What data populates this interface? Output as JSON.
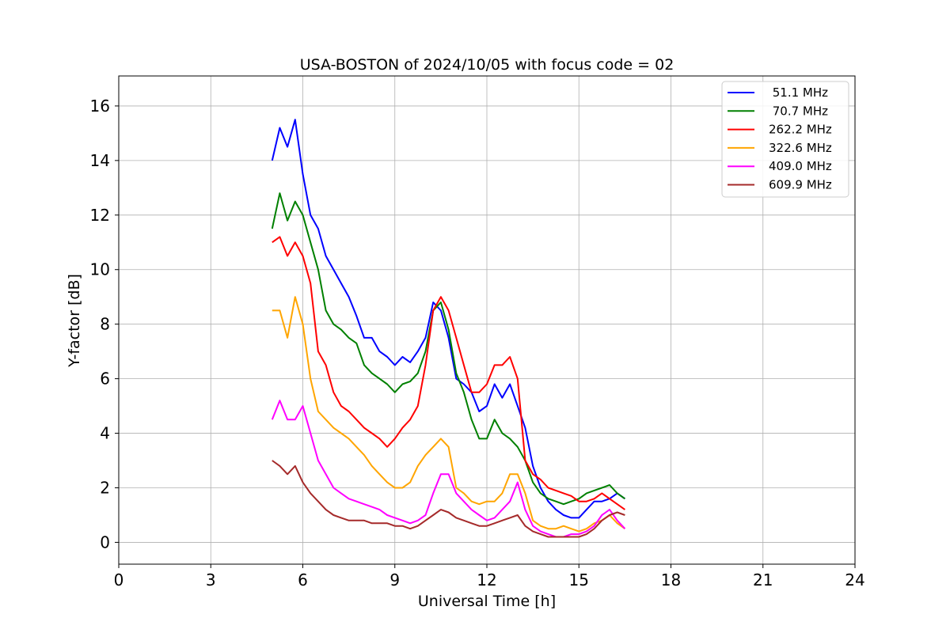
{
  "chart_data": {
    "type": "line",
    "title": "USA-BOSTON of 2024/10/05 with focus code = 02",
    "xlabel": "Universal Time [h]",
    "ylabel": "Y-factor [dB]",
    "xlim": [
      0,
      24
    ],
    "ylim": [
      -0.8,
      17.1
    ],
    "xticks": [
      0,
      3,
      6,
      9,
      12,
      15,
      18,
      21,
      24
    ],
    "yticks": [
      0,
      2,
      4,
      6,
      8,
      10,
      12,
      14,
      16
    ],
    "grid": true,
    "legend_position": "top-right",
    "x": [
      5.0,
      5.25,
      5.5,
      5.75,
      6.0,
      6.25,
      6.5,
      6.75,
      7.0,
      7.25,
      7.5,
      7.75,
      8.0,
      8.25,
      8.5,
      8.75,
      9.0,
      9.25,
      9.5,
      9.75,
      10.0,
      10.25,
      10.5,
      10.75,
      11.0,
      11.25,
      11.5,
      11.75,
      12.0,
      12.25,
      12.5,
      12.75,
      13.0,
      13.25,
      13.5,
      13.75,
      14.0,
      14.25,
      14.5,
      14.75,
      15.0,
      15.25,
      15.5,
      15.75,
      16.0,
      16.25,
      16.5
    ],
    "series": [
      {
        "name": " 51.1 MHz",
        "color": "#0000ff",
        "values": [
          14.0,
          15.2,
          14.5,
          15.5,
          13.5,
          12.0,
          11.5,
          10.5,
          10.0,
          9.5,
          9.0,
          8.3,
          7.5,
          7.5,
          7.0,
          6.8,
          6.5,
          6.8,
          6.6,
          7.0,
          7.5,
          8.8,
          8.5,
          7.5,
          6.0,
          5.8,
          5.5,
          4.8,
          5.0,
          5.8,
          5.3,
          5.8,
          5.0,
          4.2,
          2.8,
          2.0,
          1.5,
          1.2,
          1.0,
          0.9,
          0.9,
          1.2,
          1.5,
          1.5,
          1.6,
          1.8,
          1.6
        ]
      },
      {
        "name": " 70.7 MHz",
        "color": "#008000",
        "values": [
          11.5,
          12.8,
          11.8,
          12.5,
          12.0,
          11.0,
          10.0,
          8.5,
          8.0,
          7.8,
          7.5,
          7.3,
          6.5,
          6.2,
          6.0,
          5.8,
          5.5,
          5.8,
          5.9,
          6.2,
          7.0,
          8.5,
          8.8,
          7.8,
          6.2,
          5.5,
          4.5,
          3.8,
          3.8,
          4.5,
          4.0,
          3.8,
          3.5,
          3.0,
          2.2,
          1.8,
          1.6,
          1.5,
          1.4,
          1.5,
          1.6,
          1.8,
          1.9,
          2.0,
          2.1,
          1.8,
          1.6
        ]
      },
      {
        "name": "262.2 MHz",
        "color": "#ff0000",
        "values": [
          11.0,
          11.2,
          10.5,
          11.0,
          10.5,
          9.5,
          7.0,
          6.5,
          5.5,
          5.0,
          4.8,
          4.5,
          4.2,
          4.0,
          3.8,
          3.5,
          3.8,
          4.2,
          4.5,
          5.0,
          6.5,
          8.5,
          9.0,
          8.5,
          7.5,
          6.5,
          5.5,
          5.5,
          5.8,
          6.5,
          6.5,
          6.8,
          6.0,
          3.0,
          2.5,
          2.3,
          2.0,
          1.9,
          1.8,
          1.7,
          1.5,
          1.5,
          1.6,
          1.8,
          1.6,
          1.4,
          1.2
        ]
      },
      {
        "name": "322.6 MHz",
        "color": "#ffa500",
        "values": [
          8.5,
          8.5,
          7.5,
          9.0,
          8.0,
          6.0,
          4.8,
          4.5,
          4.2,
          4.0,
          3.8,
          3.5,
          3.2,
          2.8,
          2.5,
          2.2,
          2.0,
          2.0,
          2.2,
          2.8,
          3.2,
          3.5,
          3.8,
          3.5,
          2.0,
          1.8,
          1.5,
          1.4,
          1.5,
          1.5,
          1.8,
          2.5,
          2.5,
          1.8,
          0.8,
          0.6,
          0.5,
          0.5,
          0.6,
          0.5,
          0.4,
          0.5,
          0.7,
          0.8,
          1.0,
          0.7,
          0.5
        ]
      },
      {
        "name": "409.0 MHz",
        "color": "#ff00ff",
        "values": [
          4.5,
          5.2,
          4.5,
          4.5,
          5.0,
          4.0,
          3.0,
          2.5,
          2.0,
          1.8,
          1.6,
          1.5,
          1.4,
          1.3,
          1.2,
          1.0,
          0.9,
          0.8,
          0.7,
          0.8,
          1.0,
          1.8,
          2.5,
          2.5,
          1.8,
          1.5,
          1.2,
          1.0,
          0.8,
          0.9,
          1.2,
          1.5,
          2.2,
          1.2,
          0.6,
          0.4,
          0.3,
          0.2,
          0.2,
          0.3,
          0.3,
          0.4,
          0.6,
          1.0,
          1.2,
          0.8,
          0.5
        ]
      },
      {
        "name": "609.9 MHz",
        "color": "#a52a2a",
        "values": [
          3.0,
          2.8,
          2.5,
          2.8,
          2.2,
          1.8,
          1.5,
          1.2,
          1.0,
          0.9,
          0.8,
          0.8,
          0.8,
          0.7,
          0.7,
          0.7,
          0.6,
          0.6,
          0.5,
          0.6,
          0.8,
          1.0,
          1.2,
          1.1,
          0.9,
          0.8,
          0.7,
          0.6,
          0.6,
          0.7,
          0.8,
          0.9,
          1.0,
          0.6,
          0.4,
          0.3,
          0.2,
          0.2,
          0.2,
          0.2,
          0.2,
          0.3,
          0.5,
          0.8,
          1.0,
          1.1,
          1.0
        ]
      }
    ]
  }
}
